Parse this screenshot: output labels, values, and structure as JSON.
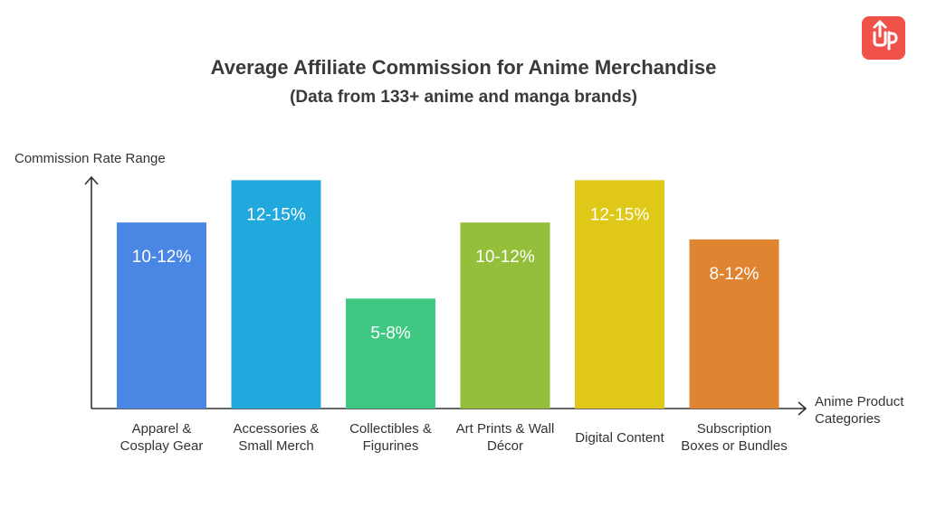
{
  "chart_data": {
    "type": "bar",
    "title": "Average Affiliate Commission for Anime Merchandise",
    "subtitle": "(Data from 133+ anime and manga brands)",
    "y_label": "Commission Rate Range",
    "x_label": "Anime Product Categories",
    "categories": [
      "Apparel & Cosplay Gear",
      "Accessories & Small Merch",
      "Collectibles & Figurines",
      "Art Prints & Wall Décor",
      "Digital Content",
      "Subscription Boxes or Bundles"
    ],
    "low": [
      10,
      12,
      5,
      10,
      12,
      8
    ],
    "high": [
      12,
      15,
      8,
      12,
      15,
      12
    ],
    "value_labels": [
      "10-12%",
      "12-15%",
      "5-8%",
      "10-12%",
      "12-15%",
      "8-12%"
    ],
    "colors": [
      "#4a86e4",
      "#21a8dc",
      "#3ec882",
      "#93bf3b",
      "#dfc817",
      "#df8430"
    ],
    "ylim": [
      0,
      14
    ]
  }
}
